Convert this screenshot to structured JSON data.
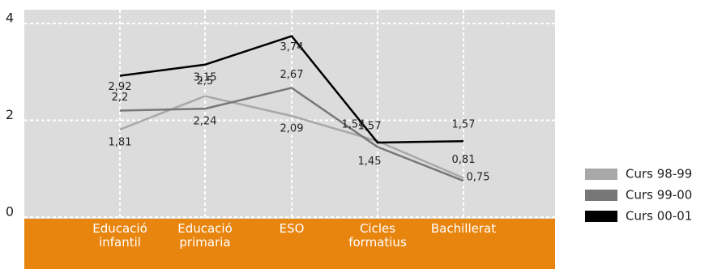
{
  "chart_data": {
    "type": "line",
    "categories": [
      "Educació infantil",
      "Educació primaria",
      "ESO",
      "Cicles formatius",
      "Bachillerat"
    ],
    "ylim": [
      0,
      4
    ],
    "yticks": [
      0,
      2,
      4
    ],
    "grid": true,
    "legend": "right",
    "series": [
      {
        "name": "Curs 98-99",
        "color": "#a8a8a8",
        "values": [
          1.81,
          2.5,
          2.09,
          1.57,
          0.81
        ],
        "value_labels": [
          "1,81",
          "2,5",
          "2,09",
          "1,57",
          "0,81"
        ]
      },
      {
        "name": "Curs 99-00",
        "color": "#777777",
        "values": [
          2.2,
          2.24,
          2.67,
          1.45,
          0.75
        ],
        "value_labels": [
          "2,2",
          "2,24",
          "2,67",
          "1,45",
          "0,75"
        ]
      },
      {
        "name": "Curs 00-01",
        "color": "#000000",
        "values": [
          2.92,
          3.15,
          3.74,
          1.54,
          1.57
        ],
        "value_labels": [
          "2,92",
          "3,15",
          "3,74",
          "1,54",
          "1,57"
        ]
      }
    ]
  }
}
